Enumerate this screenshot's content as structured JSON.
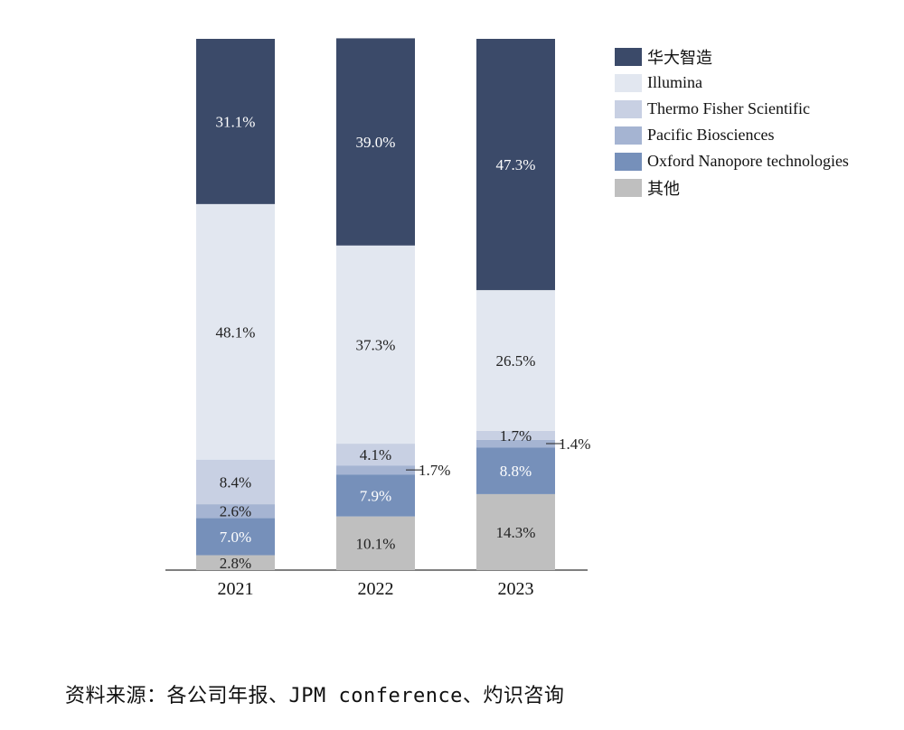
{
  "chart_data": {
    "type": "bar",
    "stacked": true,
    "categories": [
      "2021",
      "2022",
      "2023"
    ],
    "ylim": [
      0,
      100
    ],
    "legend_position": "top-right",
    "series": [
      {
        "name": "其他",
        "color": "#bfbfbf",
        "values": [
          2.8,
          10.1,
          14.3
        ],
        "labels": [
          "2.8%",
          "10.1%",
          "14.3%"
        ]
      },
      {
        "name": "Oxford Nanopore technologies",
        "color": "#7690ba",
        "values": [
          7.0,
          7.9,
          8.8
        ],
        "labels": [
          "7.0%",
          "7.9%",
          "8.8%"
        ]
      },
      {
        "name": "Pacific Biosciences",
        "color": "#a5b4d2",
        "values": [
          2.6,
          1.7,
          1.4
        ],
        "labels": [
          "2.6%",
          "1.7%",
          "1.4%"
        ]
      },
      {
        "name": "Thermo Fisher Scientific",
        "color": "#c8d0e3",
        "values": [
          8.4,
          4.1,
          1.7
        ],
        "labels": [
          "8.4%",
          "4.1%",
          "1.7%"
        ]
      },
      {
        "name": "Illumina",
        "color": "#e2e7f0",
        "values": [
          48.1,
          37.3,
          26.5
        ],
        "labels": [
          "48.1%",
          "37.3%",
          "26.5%"
        ]
      },
      {
        "name": "华大智造",
        "color": "#3b4a69",
        "values": [
          31.1,
          39.0,
          47.3
        ],
        "labels": [
          "31.1%",
          "39.0%",
          "47.3%"
        ]
      }
    ]
  },
  "legend_order": [
    "华大智造",
    "Illumina",
    "Thermo Fisher Scientific",
    "Pacific Biosciences",
    "Oxford Nanopore technologies",
    "其他"
  ],
  "source_text": "资料来源：各公司年报、JPM conference、灼识咨询"
}
